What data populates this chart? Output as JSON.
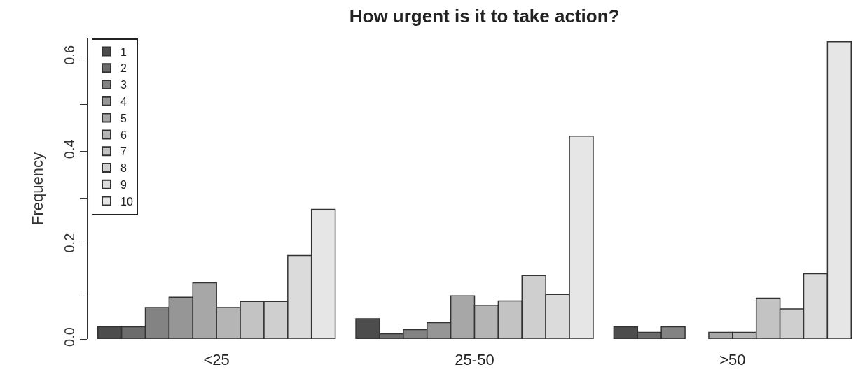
{
  "chart_data": {
    "type": "bar",
    "title": "How urgent is it to take action?",
    "ylabel": "Frequency",
    "categories": [
      "<25",
      "25-50",
      ">50"
    ],
    "series": [
      {
        "name": "1",
        "color": "#4d4d4d",
        "values": [
          0.026,
          0.043,
          0.026
        ]
      },
      {
        "name": "2",
        "color": "#6c6c6c",
        "values": [
          0.026,
          0.011,
          0.014
        ]
      },
      {
        "name": "3",
        "color": "#838383",
        "values": [
          0.067,
          0.02,
          0.026
        ]
      },
      {
        "name": "4",
        "color": "#969696",
        "values": [
          0.089,
          0.035,
          null
        ]
      },
      {
        "name": "5",
        "color": "#a7a7a7",
        "values": [
          0.12,
          0.092,
          0.014
        ]
      },
      {
        "name": "6",
        "color": "#b5b5b5",
        "values": [
          0.067,
          0.072,
          0.014
        ]
      },
      {
        "name": "7",
        "color": "#c3c3c3",
        "values": [
          0.08,
          0.081,
          0.087
        ]
      },
      {
        "name": "8",
        "color": "#cfcfcf",
        "values": [
          0.08,
          0.135,
          0.064
        ]
      },
      {
        "name": "9",
        "color": "#dbdbdb",
        "values": [
          0.178,
          0.095,
          0.139
        ]
      },
      {
        "name": "10",
        "color": "#e6e6e6",
        "values": [
          0.276,
          0.432,
          0.633
        ]
      }
    ],
    "ylim": [
      0,
      0.64
    ],
    "yticks": [
      {
        "value": 0,
        "label": "0.0"
      },
      {
        "value": 0.1,
        "label": null
      },
      0.2,
      {
        "value": 0.3,
        "label": null
      },
      0.4,
      {
        "value": 0.5,
        "label": null
      },
      0.6
    ],
    "legend": "top left"
  }
}
